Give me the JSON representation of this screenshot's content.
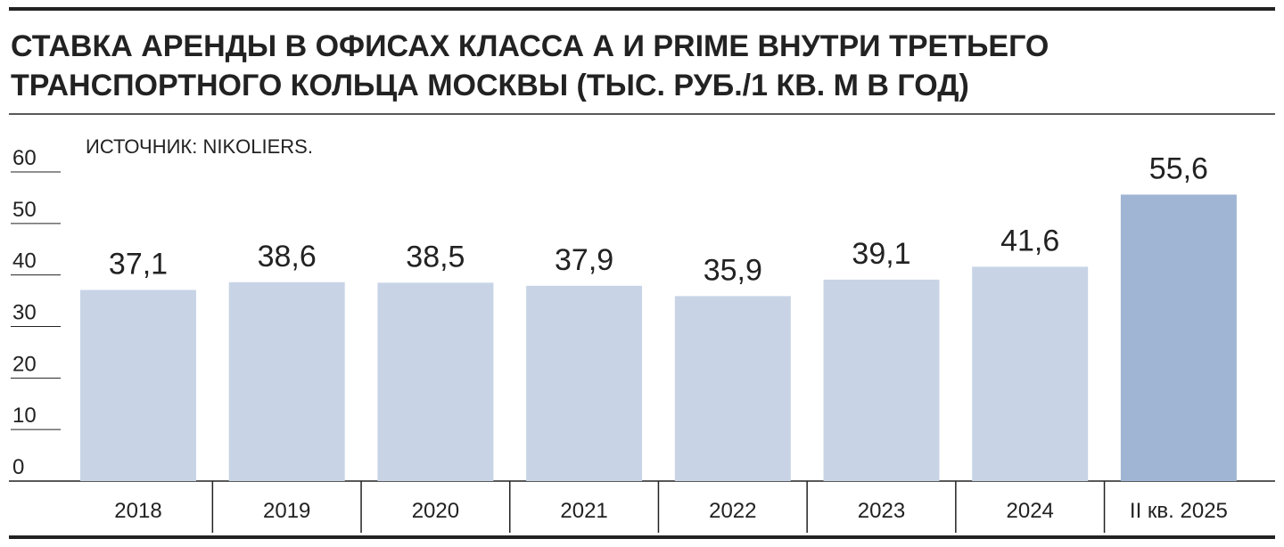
{
  "chart_data": {
    "type": "bar",
    "title": [
      "СТАВКА АРЕНДЫ В ОФИСАХ КЛАССА А И PRIME ВНУТРИ ТРЕТЬЕГО",
      "ТРАНСПОРТНОГО КОЛЬЦА МОСКВЫ (ТЫС. РУБ./1 КВ. М В ГОД)"
    ],
    "source": "ИСТОЧНИК: NIKOLIERS.",
    "categories": [
      "2018",
      "2019",
      "2020",
      "2021",
      "2022",
      "2023",
      "2024",
      "II кв. 2025"
    ],
    "values": [
      37.1,
      38.6,
      38.5,
      37.9,
      35.9,
      39.1,
      41.6,
      55.6
    ],
    "value_labels": [
      "37,1",
      "38,6",
      "38,5",
      "37,9",
      "35,9",
      "39,1",
      "41,6",
      "55,6"
    ],
    "colors": [
      "#c8d4e6",
      "#c8d4e6",
      "#c8d4e6",
      "#c8d4e6",
      "#c8d4e6",
      "#c8d4e6",
      "#c8d4e6",
      "#9fb5d3"
    ],
    "ylim": [
      0,
      60
    ],
    "yticks": [
      0,
      10,
      20,
      30,
      40,
      50,
      60
    ]
  }
}
